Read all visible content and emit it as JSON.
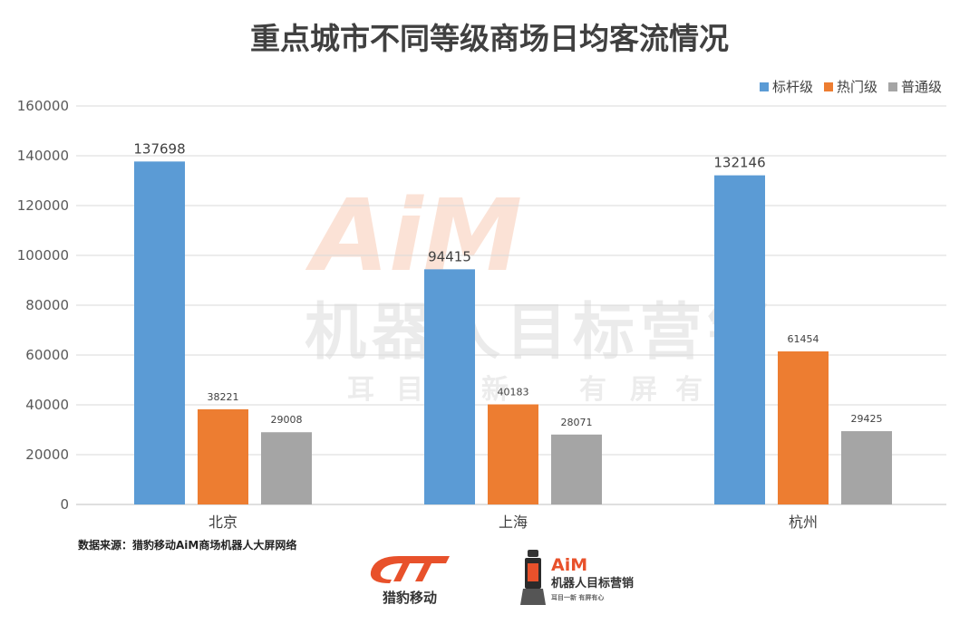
{
  "chart_data": {
    "type": "bar",
    "title": "重点城市不同等级商场日均客流情况",
    "categories": [
      "北京",
      "上海",
      "杭州"
    ],
    "series": [
      {
        "name": "标杆级",
        "color": "#5B9BD5",
        "values": [
          137698,
          94415,
          132146
        ]
      },
      {
        "name": "热门级",
        "color": "#ED7D31",
        "values": [
          38221,
          40183,
          61454
        ]
      },
      {
        "name": "普通级",
        "color": "#A5A5A5",
        "values": [
          29008,
          28071,
          29425
        ]
      }
    ],
    "yticks": [
      0,
      20000,
      40000,
      60000,
      80000,
      100000,
      120000,
      140000,
      160000
    ],
    "ylim": [
      0,
      160000
    ],
    "grid": true,
    "legend_position": "top-right",
    "source": "数据来源：猎豹移动AiM商场机器人大屏网络"
  },
  "watermark": {
    "brand": "AiM",
    "main": "机器人目标营销",
    "sub": [
      "耳",
      "目",
      "新",
      "有",
      "屏",
      "有"
    ]
  },
  "logos": {
    "cm_text": "猎豹移动",
    "aim_brand": "AiM",
    "aim_text": "机器人目标营销",
    "aim_sub": "耳目一新 有屏有心"
  }
}
